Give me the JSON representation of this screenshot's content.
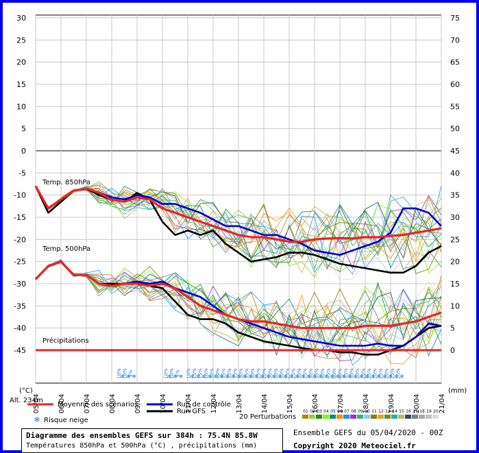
{
  "chart_data": {
    "type": "line",
    "title": "Diagramme des ensembles GEFS sur 384h : 75.4N 85.8W",
    "subtitle": "Températures 850hPa et 500hPa (°C) , précipitations (mm)",
    "left_axis_unit": "(°C)",
    "right_axis_unit": "(mm)",
    "altitude_label": "Alt. 234m",
    "y_left_ticks": [
      30,
      25,
      20,
      15,
      10,
      5,
      0,
      -5,
      -10,
      -15,
      -20,
      -25,
      -30,
      -35,
      -40,
      -45
    ],
    "y_right_ticks": [
      75,
      70,
      65,
      60,
      55,
      50,
      45,
      40,
      35,
      30,
      25,
      20,
      15,
      10,
      5,
      0
    ],
    "ylim": [
      -45,
      30
    ],
    "x_ticks": [
      "05/04",
      "06/04",
      "07/04",
      "08/04",
      "09/04",
      "10/04",
      "11/04",
      "12/04",
      "13/04",
      "14/04",
      "15/04",
      "16/04",
      "17/04",
      "18/04",
      "19/04",
      "20/04",
      "21/04"
    ],
    "xlim_days": [
      0,
      16
    ],
    "grid": true,
    "annotations": {
      "t850": "Temp. 850hPa",
      "t500": "Temp. 500hPa",
      "precip": "Précipitations"
    },
    "series": [
      {
        "name": "Moyenne des scénarios",
        "group": "850hPa",
        "color": "#ee2222",
        "x": [
          0,
          0.5,
          1,
          1.5,
          2,
          2.5,
          3,
          3.5,
          4,
          4.5,
          5,
          5.5,
          6,
          6.5,
          7,
          7.5,
          8,
          8.5,
          9,
          9.5,
          10,
          10.5,
          11,
          11.5,
          12,
          12.5,
          13,
          13.5,
          14,
          14.5,
          15,
          15.5,
          16
        ],
        "values": [
          -8,
          -13,
          -11,
          -9,
          -8.5,
          -9.5,
          -11,
          -11.5,
          -10.5,
          -11,
          -13,
          -14,
          -15,
          -16,
          -17,
          -18,
          -19,
          -19.5,
          -19.5,
          -20,
          -20.5,
          -20.5,
          -20,
          -19.8,
          -19.7,
          -19.8,
          -19.5,
          -19.5,
          -19.2,
          -19,
          -18.5,
          -18,
          -17.5
        ]
      },
      {
        "name": "Run de contrôle",
        "group": "850hPa",
        "color": "#0000cc",
        "x": [
          0,
          0.5,
          1,
          1.5,
          2,
          2.5,
          3,
          3.5,
          4,
          4.5,
          5,
          5.5,
          6,
          6.5,
          7,
          7.5,
          8,
          8.5,
          9,
          9.5,
          10,
          10.5,
          11,
          11.5,
          12,
          12.5,
          13,
          13.5,
          14,
          14.5,
          15,
          15.5,
          16
        ],
        "values": [
          -8,
          -13,
          -11,
          -9,
          -8.5,
          -9.5,
          -10.5,
          -11,
          -10,
          -10.5,
          -12,
          -12,
          -13,
          -14,
          -15.5,
          -17,
          -17,
          -18,
          -19,
          -19,
          -20,
          -21,
          -22.5,
          -23,
          -23.5,
          -22.5,
          -21.5,
          -20.5,
          -18.5,
          -13,
          -13,
          -14,
          -17
        ]
      },
      {
        "name": "Run GFS",
        "group": "850hPa",
        "color": "#000000",
        "x": [
          0,
          0.5,
          1,
          1.5,
          2,
          2.5,
          3,
          3.5,
          4,
          4.5,
          5,
          5.5,
          6,
          6.5,
          7,
          7.5,
          8,
          8.5,
          9,
          9.5,
          10,
          10.5,
          11,
          11.5,
          12,
          12.5,
          13,
          13.5,
          14,
          14.5,
          15,
          15.5,
          16
        ],
        "values": [
          -8,
          -14,
          -11.5,
          -9,
          -8.5,
          -10,
          -11,
          -11.5,
          -9.5,
          -11,
          -16,
          -19,
          -18,
          -19,
          -18,
          -21,
          -23,
          -25,
          -24.5,
          -24,
          -23,
          -23,
          -23.5,
          -24.5,
          -25.5,
          -26,
          -26.5,
          -27,
          -27.5,
          -27.5,
          -26,
          -23,
          -21.5
        ]
      },
      {
        "name": "Moyenne des scénarios",
        "group": "500hPa",
        "color": "#ee2222",
        "x": [
          0,
          0.5,
          1,
          1.5,
          2,
          2.5,
          3,
          3.5,
          4,
          4.5,
          5,
          5.5,
          6,
          6.5,
          7,
          7.5,
          8,
          8.5,
          9,
          9.5,
          10,
          10.5,
          11,
          11.5,
          12,
          12.5,
          13,
          13.5,
          14,
          14.5,
          15,
          15.5,
          16
        ],
        "values": [
          -29,
          -26,
          -25,
          -28,
          -28,
          -30,
          -30.5,
          -30,
          -30,
          -30.5,
          -30,
          -31,
          -33,
          -35,
          -36,
          -37,
          -38,
          -38.5,
          -38.5,
          -39,
          -39.5,
          -40,
          -40,
          -40,
          -40,
          -40,
          -39.5,
          -39.5,
          -39.5,
          -39,
          -38.5,
          -37.5,
          -36.5
        ]
      },
      {
        "name": "Run de contrôle",
        "group": "500hPa",
        "color": "#0000cc",
        "x": [
          0,
          0.5,
          1,
          1.5,
          2,
          2.5,
          3,
          3.5,
          4,
          4.5,
          5,
          5.5,
          6,
          6.5,
          7,
          7.5,
          8,
          8.5,
          9,
          9.5,
          10,
          10.5,
          11,
          11.5,
          12,
          12.5,
          13,
          13.5,
          14,
          14.5,
          15,
          15.5,
          16
        ],
        "values": [
          -29,
          -26,
          -25,
          -28,
          -28,
          -30,
          -30.5,
          -30,
          -29.5,
          -30,
          -29.5,
          -31,
          -32,
          -33,
          -35,
          -37,
          -38,
          -39,
          -40,
          -41,
          -42,
          -42.5,
          -43,
          -43.5,
          -44,
          -44,
          -44,
          -43.5,
          -44,
          -44,
          -42,
          -39,
          -39.5
        ]
      },
      {
        "name": "Run GFS",
        "group": "500hPa",
        "color": "#000000",
        "x": [
          0,
          0.5,
          1,
          1.5,
          2,
          2.5,
          3,
          3.5,
          4,
          4.5,
          5,
          5.5,
          6,
          6.5,
          7,
          7.5,
          8,
          8.5,
          9,
          9.5,
          10,
          10.5,
          11,
          11.5,
          12,
          12.5,
          13,
          13.5,
          14,
          14.5,
          15,
          15.5,
          16
        ],
        "values": [
          -29,
          -26,
          -25,
          -28,
          -28,
          -30,
          -30,
          -30,
          -29.5,
          -30.5,
          -31,
          -34,
          -37,
          -38,
          -38,
          -39,
          -41,
          -42,
          -43,
          -43.5,
          -44,
          -44.5,
          -45,
          -45,
          -45.5,
          -45.5,
          -46,
          -46,
          -45,
          -44,
          -42,
          -40,
          -39.5
        ]
      },
      {
        "name": "Précipitations",
        "group": "precip",
        "color": "#ee2222",
        "x": [
          0,
          16
        ],
        "values": [
          -45,
          -45
        ]
      }
    ],
    "legend": [
      {
        "label": "Moyenne des scénarios",
        "color": "#ee2222"
      },
      {
        "label": "Run de contrôle",
        "color": "#0000cc"
      },
      {
        "label": "Run GFS",
        "color": "#000000"
      }
    ],
    "snow_risk_label": "Risque neige",
    "snow_risk": [
      {
        "x": 3.35,
        "labels": [
          "10%",
          "10%",
          "5%"
        ]
      },
      {
        "x": 5.2,
        "labels": [
          "10%",
          "10%",
          "5%"
        ]
      },
      {
        "x": 6.1,
        "labels": [
          "10%",
          "15%",
          "15%",
          "10%",
          "30%",
          "40%",
          "35%",
          "35%",
          "35%",
          "30%",
          "35%",
          "30%",
          "25%",
          "20%",
          "30%",
          "30%",
          "30%",
          "25%",
          "25%",
          "30%",
          "25%",
          "30%",
          "35%",
          "40%",
          "45%",
          "50%",
          "40%",
          "35%",
          "30%",
          "20%",
          "20%",
          "25%",
          "20%",
          "25%",
          "20%",
          "25%",
          "20%"
        ]
      }
    ],
    "perturbations_label": "20 Perturbations",
    "perturbations": [
      {
        "id": "01",
        "color": "#b8860b"
      },
      {
        "id": "02",
        "color": "#9acd32"
      },
      {
        "id": "03",
        "color": "#228b22"
      },
      {
        "id": "04",
        "color": "#7cfc00"
      },
      {
        "id": "05",
        "color": "#008b8b"
      },
      {
        "id": "06",
        "color": "#ff8c00"
      },
      {
        "id": "07",
        "color": "#1e90ff"
      },
      {
        "id": "08",
        "color": "#9932cc"
      },
      {
        "id": "09",
        "color": "#3cb371"
      },
      {
        "id": "10",
        "color": "#87cefa"
      },
      {
        "id": "11",
        "color": "#808000"
      },
      {
        "id": "12",
        "color": "#daa520"
      },
      {
        "id": "13",
        "color": "#6b8e23"
      },
      {
        "id": "14",
        "color": "#20b2aa"
      },
      {
        "id": "15",
        "color": "#bdb76b"
      },
      {
        "id": "16",
        "color": "#2f4f4f"
      },
      {
        "id": "17",
        "color": "#708090"
      },
      {
        "id": "18",
        "color": "#a9a9a9"
      },
      {
        "id": "19",
        "color": "#c0c0c0"
      },
      {
        "id": "20",
        "color": "#dcdcdc"
      }
    ]
  },
  "footer": {
    "title": "Diagramme des ensembles GEFS sur 384h : 75.4N 85.8W",
    "subtitle": "Températures 850hPa et 500hPa (°C) , précipitations (mm)",
    "run_info": "Ensemble GEFS du 05/04/2020 - 00Z",
    "copyright": "Copyright 2020 Meteociel.fr"
  }
}
